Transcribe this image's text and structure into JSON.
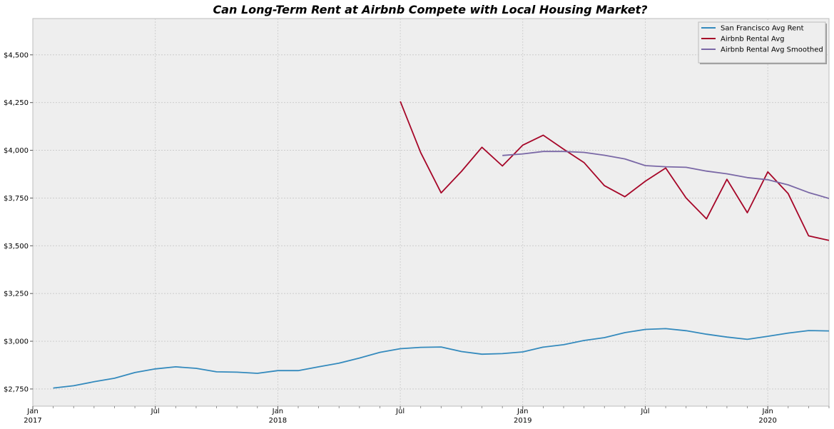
{
  "chart_data": {
    "type": "line",
    "title": "Can Long-Term Rent at Airbnb Compete with Local Housing Market?",
    "xlabel": "",
    "ylabel": "",
    "xlim": [
      "2017-01",
      "2020-04"
    ],
    "ylim": [
      2660,
      4690
    ],
    "grid": true,
    "legend_position": "top-right",
    "x_ticks": [
      {
        "date": "2017-01",
        "label": "Jan",
        "sublabel": "2017"
      },
      {
        "date": "2017-07",
        "label": "Jul",
        "sublabel": ""
      },
      {
        "date": "2018-01",
        "label": "Jan",
        "sublabel": "2018"
      },
      {
        "date": "2018-07",
        "label": "Jul",
        "sublabel": ""
      },
      {
        "date": "2019-01",
        "label": "Jan",
        "sublabel": "2019"
      },
      {
        "date": "2019-07",
        "label": "Jul",
        "sublabel": ""
      },
      {
        "date": "2020-01",
        "label": "Jan",
        "sublabel": "2020"
      }
    ],
    "y_ticks": [
      2750,
      3000,
      3250,
      3500,
      3750,
      4000,
      4250,
      4500
    ],
    "y_tick_labels": [
      "$2,750",
      "$3,000",
      "$3,250",
      "$3,500",
      "$3,750",
      "$4,000",
      "$4,250",
      "$4,500"
    ],
    "series": [
      {
        "name": "San Francisco Avg Rent",
        "color": "#348abd",
        "x": [
          "2017-02",
          "2017-03",
          "2017-04",
          "2017-05",
          "2017-06",
          "2017-07",
          "2017-08",
          "2017-09",
          "2017-10",
          "2017-11",
          "2017-12",
          "2018-01",
          "2018-02",
          "2018-03",
          "2018-04",
          "2018-05",
          "2018-06",
          "2018-07",
          "2018-08",
          "2018-09",
          "2018-10",
          "2018-11",
          "2018-12",
          "2019-01",
          "2019-02",
          "2019-03",
          "2019-04",
          "2019-05",
          "2019-06",
          "2019-07",
          "2019-08",
          "2019-09",
          "2019-10",
          "2019-11",
          "2019-12",
          "2020-01",
          "2020-02",
          "2020-03",
          "2020-04"
        ],
        "values": [
          2755,
          2767,
          2788,
          2806,
          2836,
          2855,
          2866,
          2858,
          2840,
          2838,
          2832,
          2846,
          2846,
          2866,
          2885,
          2912,
          2942,
          2961,
          2968,
          2970,
          2946,
          2932,
          2935,
          2944,
          2969,
          2982,
          3004,
          3019,
          3045,
          3062,
          3066,
          3055,
          3037,
          3022,
          3010,
          3026,
          3043,
          3056,
          3054
        ]
      },
      {
        "name": "Airbnb Rental Avg",
        "color": "#a60628",
        "x": [
          "2018-07",
          "2018-08",
          "2018-09",
          "2018-10",
          "2018-11",
          "2018-12",
          "2019-01",
          "2019-02",
          "2019-03",
          "2019-04",
          "2019-05",
          "2019-06",
          "2019-07",
          "2019-08",
          "2019-09",
          "2019-10",
          "2019-11",
          "2019-12",
          "2020-01",
          "2020-02",
          "2020-03",
          "2020-04"
        ],
        "values": [
          4256,
          3988,
          3777,
          3890,
          4016,
          3918,
          4027,
          4079,
          4006,
          3936,
          3815,
          3757,
          3838,
          3907,
          3750,
          3641,
          3848,
          3673,
          3887,
          3773,
          3552,
          3528
        ]
      },
      {
        "name": "Airbnb Rental Avg Smoothed",
        "color": "#7a68a6",
        "x": [
          "2018-12",
          "2019-01",
          "2019-02",
          "2019-03",
          "2019-04",
          "2019-05",
          "2019-06",
          "2019-07",
          "2019-08",
          "2019-09",
          "2019-10",
          "2019-11",
          "2019-12",
          "2020-01",
          "2020-02",
          "2020-03",
          "2020-04"
        ],
        "values": [
          3973,
          3981,
          3994,
          3994,
          3989,
          3974,
          3955,
          3920,
          3914,
          3911,
          3891,
          3877,
          3857,
          3846,
          3819,
          3779,
          3748
        ]
      }
    ]
  }
}
